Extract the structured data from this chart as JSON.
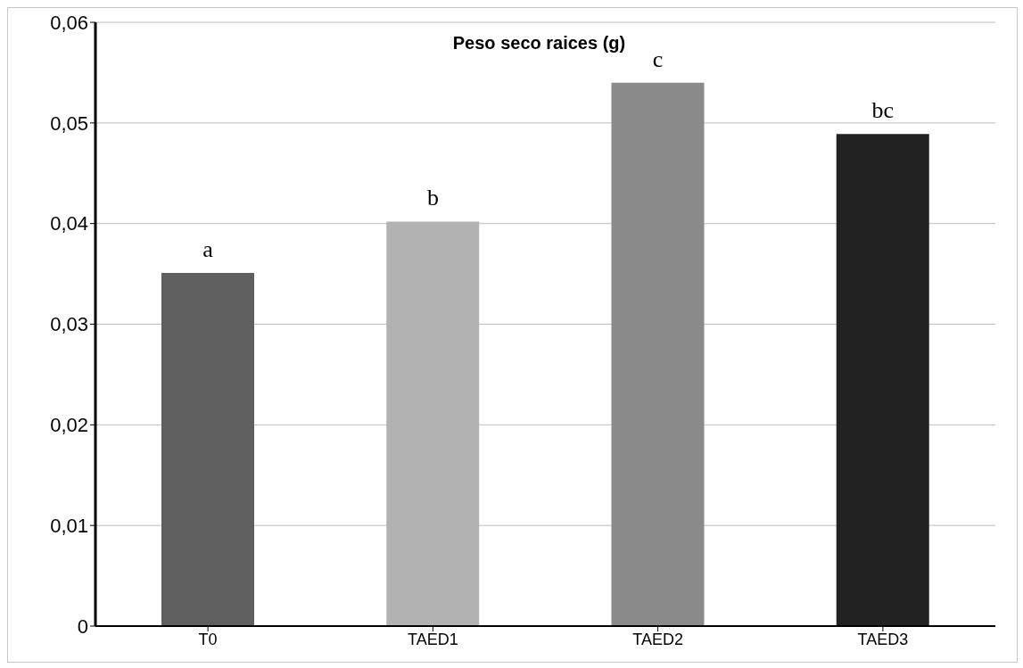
{
  "chart_data": {
    "type": "bar",
    "title": "Peso seco raices (g)",
    "categories": [
      "T0",
      "TAED1",
      "TAED2",
      "TAED3"
    ],
    "values": [
      0.0351,
      0.0402,
      0.054,
      0.0489
    ],
    "colors": [
      "#5f5f5f",
      "#b2b2b2",
      "#8a8a8a",
      "#222222"
    ],
    "ylim": [
      0,
      0.06
    ],
    "yticks": [
      0,
      {
        "value": 0.01,
        "label": "0,01"
      },
      {
        "value": 0.02,
        "label": "0,02"
      },
      {
        "value": 0.03,
        "label": "0,03"
      },
      {
        "value": 0.04,
        "label": "0,04"
      },
      {
        "value": 0.05,
        "label": "0,05"
      },
      {
        "value": 0.06,
        "label": "0,06"
      }
    ],
    "grid": "y",
    "annotations": [
      {
        "text": "a",
        "x": "T0",
        "y": 0.0351
      },
      {
        "text": "b",
        "x": "TAED1",
        "y": 0.0402
      },
      {
        "text": "c",
        "x": "TAED2",
        "y": 0.054
      },
      {
        "text": "bc",
        "x": "TAED3",
        "y": 0.0489
      }
    ]
  }
}
